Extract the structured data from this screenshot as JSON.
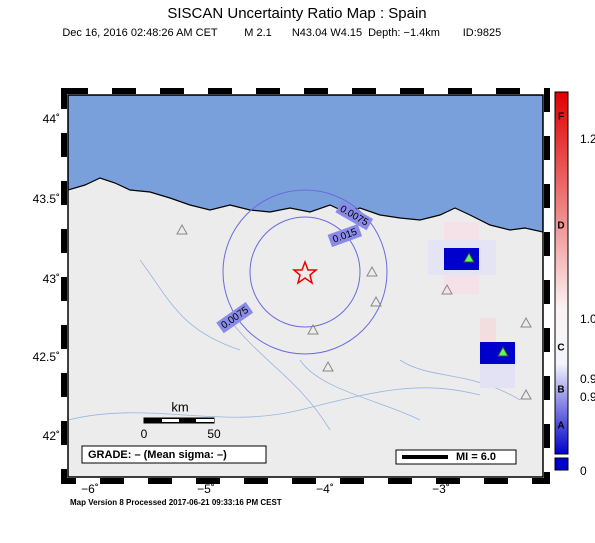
{
  "header": {
    "title": "SISCAN Uncertainty Ratio Map : Spain",
    "subtitle": [
      "Dec 16, 2016 02:48:26 AM CET",
      "M 2.1",
      "N43.04 W4.15",
      "Depth: −1.4km",
      "ID:9825"
    ]
  },
  "map": {
    "lat_labels": [
      "44˚",
      "43.5˚",
      "43˚",
      "42.5˚",
      "42˚"
    ],
    "lon_labels": [
      "−6˚",
      "−5˚",
      "−4˚",
      "−3˚"
    ],
    "contour_labels": [
      "0.0075",
      "0.015",
      "0.0075"
    ],
    "scale": {
      "unit": "km",
      "start": "0",
      "end": "50"
    },
    "grade": "GRADE: – (Mean sigma: –)",
    "mi": "MI = 6.0"
  },
  "colorbar": {
    "labels": [
      "F",
      "1.2",
      "D",
      "1.0",
      "C",
      "0.9",
      "B",
      "0.9",
      "A",
      "0"
    ]
  },
  "footer": "Map Version 8 Processed 2017-06-21 09:33:16 PM CEST"
}
